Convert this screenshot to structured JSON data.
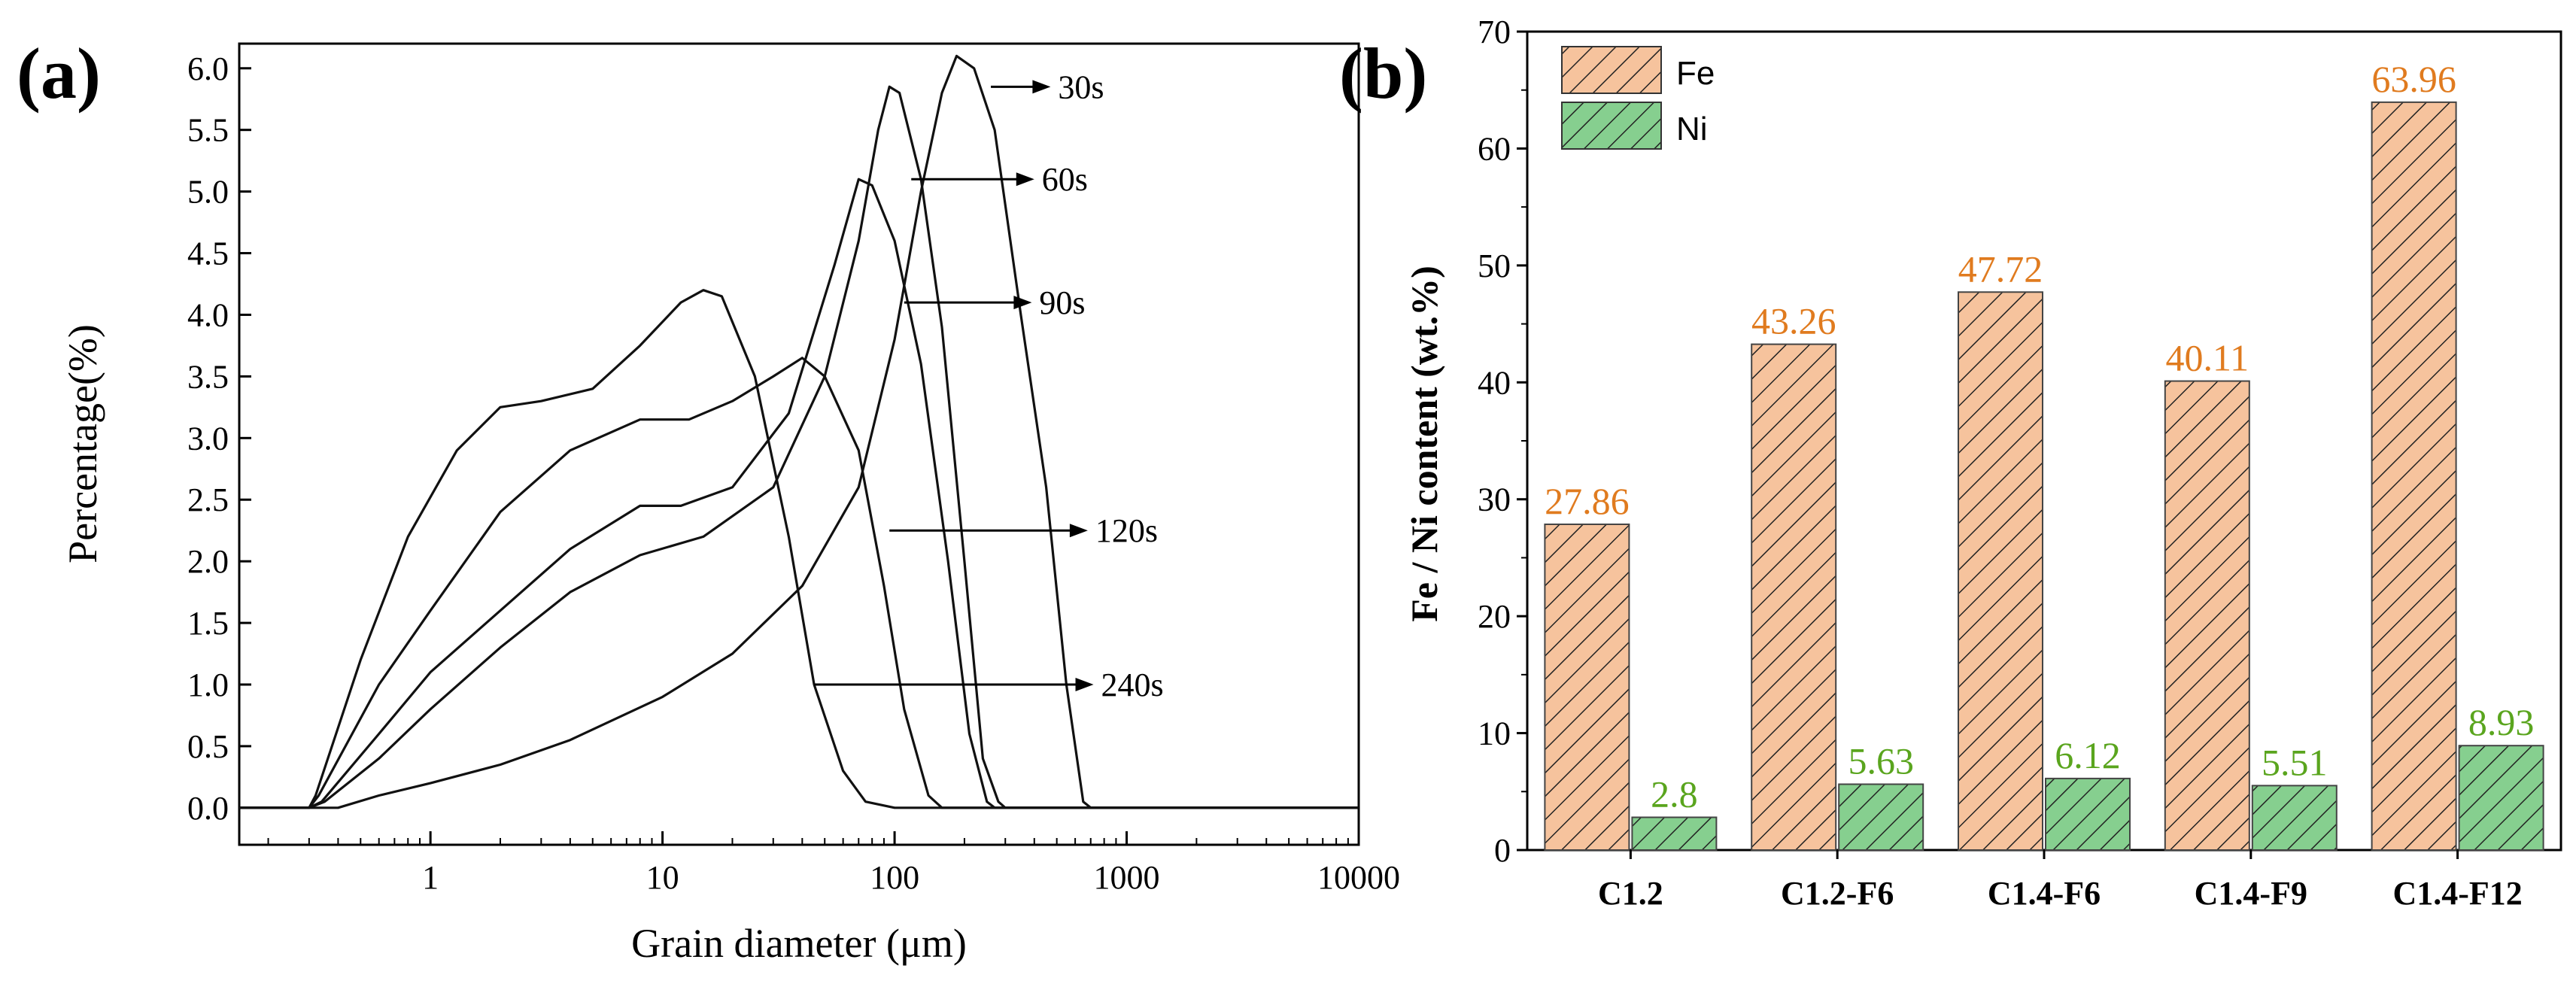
{
  "panels": {
    "a": {
      "label": "(a)",
      "xlabel": "Grain diameter (μm)",
      "ylabel": "Percentage(%)",
      "x_ticks": [
        "1",
        "10",
        "100",
        "1000",
        "10000"
      ],
      "y_ticks": [
        "0.0",
        "0.5",
        "1.0",
        "1.5",
        "2.0",
        "2.5",
        "3.0",
        "3.5",
        "4.0",
        "4.5",
        "5.0",
        "5.5",
        "6.0"
      ]
    },
    "b": {
      "label": "(b)",
      "ylabel": "Fe / Ni content (wt.%)",
      "y_ticks": [
        "0",
        "10",
        "20",
        "30",
        "40",
        "50",
        "60",
        "70"
      ],
      "legend": [
        "Fe",
        "Ni"
      ]
    }
  },
  "colors": {
    "fe_fill": "#f6c39d",
    "fe_label": "#e07b1f",
    "ni_fill": "#86cf8f",
    "ni_label": "#5aa51e"
  },
  "chart_data": [
    {
      "type": "line",
      "xlabel": "Grain diameter (μm)",
      "ylabel": "Percentage(%)",
      "x_scale": "log",
      "xlim": [
        0.15,
        10000
      ],
      "ylim": [
        -0.3,
        6.2
      ],
      "grid": false,
      "series": [
        {
          "name": "30s",
          "points": [
            [
              0.1,
              0
            ],
            [
              0.3,
              0
            ],
            [
              0.4,
              0
            ],
            [
              0.6,
              0.1
            ],
            [
              1,
              0.2
            ],
            [
              2,
              0.35
            ],
            [
              4,
              0.55
            ],
            [
              10,
              0.9
            ],
            [
              20,
              1.25
            ],
            [
              40,
              1.8
            ],
            [
              70,
              2.6
            ],
            [
              100,
              3.8
            ],
            [
              130,
              5.0
            ],
            [
              160,
              5.8
            ],
            [
              185,
              6.1
            ],
            [
              220,
              6.0
            ],
            [
              270,
              5.5
            ],
            [
              350,
              4.0
            ],
            [
              450,
              2.6
            ],
            [
              550,
              1.0
            ],
            [
              650,
              0.05
            ],
            [
              700,
              0
            ],
            [
              10000,
              0
            ]
          ]
        },
        {
          "name": "60s",
          "points": [
            [
              0.1,
              0
            ],
            [
              0.3,
              0
            ],
            [
              0.35,
              0.05
            ],
            [
              0.6,
              0.4
            ],
            [
              1,
              0.8
            ],
            [
              2,
              1.3
            ],
            [
              4,
              1.75
            ],
            [
              8,
              2.05
            ],
            [
              15,
              2.2
            ],
            [
              30,
              2.6
            ],
            [
              50,
              3.5
            ],
            [
              70,
              4.6
            ],
            [
              85,
              5.5
            ],
            [
              95,
              5.85
            ],
            [
              105,
              5.8
            ],
            [
              130,
              5.1
            ],
            [
              160,
              3.9
            ],
            [
              200,
              2.0
            ],
            [
              240,
              0.4
            ],
            [
              280,
              0.05
            ],
            [
              300,
              0
            ],
            [
              10000,
              0
            ]
          ]
        },
        {
          "name": "90s",
          "points": [
            [
              0.1,
              0
            ],
            [
              0.3,
              0
            ],
            [
              0.34,
              0.05
            ],
            [
              0.6,
              0.6
            ],
            [
              1,
              1.1
            ],
            [
              2,
              1.6
            ],
            [
              4,
              2.1
            ],
            [
              8,
              2.45
            ],
            [
              12,
              2.45
            ],
            [
              20,
              2.6
            ],
            [
              35,
              3.2
            ],
            [
              55,
              4.4
            ],
            [
              70,
              5.1
            ],
            [
              80,
              5.05
            ],
            [
              100,
              4.6
            ],
            [
              130,
              3.6
            ],
            [
              170,
              2.0
            ],
            [
              210,
              0.6
            ],
            [
              250,
              0.05
            ],
            [
              270,
              0
            ],
            [
              10000,
              0
            ]
          ]
        },
        {
          "name": "120s",
          "points": [
            [
              0.1,
              0
            ],
            [
              0.3,
              0
            ],
            [
              0.33,
              0.1
            ],
            [
              0.6,
              1.0
            ],
            [
              1,
              1.6
            ],
            [
              2,
              2.4
            ],
            [
              4,
              2.9
            ],
            [
              8,
              3.15
            ],
            [
              13,
              3.15
            ],
            [
              20,
              3.3
            ],
            [
              30,
              3.5
            ],
            [
              40,
              3.65
            ],
            [
              50,
              3.5
            ],
            [
              70,
              2.9
            ],
            [
              90,
              1.8
            ],
            [
              110,
              0.8
            ],
            [
              140,
              0.1
            ],
            [
              160,
              0
            ],
            [
              10000,
              0
            ]
          ]
        },
        {
          "name": "240s",
          "points": [
            [
              0.1,
              0
            ],
            [
              0.3,
              0
            ],
            [
              0.32,
              0.1
            ],
            [
              0.5,
              1.2
            ],
            [
              0.8,
              2.2
            ],
            [
              1.3,
              2.9
            ],
            [
              2,
              3.25
            ],
            [
              3,
              3.3
            ],
            [
              5,
              3.4
            ],
            [
              8,
              3.75
            ],
            [
              12,
              4.1
            ],
            [
              15,
              4.2
            ],
            [
              18,
              4.15
            ],
            [
              25,
              3.5
            ],
            [
              35,
              2.2
            ],
            [
              45,
              1.0
            ],
            [
              60,
              0.3
            ],
            [
              75,
              0.05
            ],
            [
              100,
              0
            ],
            [
              10000,
              0
            ]
          ]
        }
      ],
      "annotations": [
        "30s",
        "60s",
        "90s",
        "120s",
        "240s"
      ]
    },
    {
      "type": "bar",
      "ylabel": "Fe / Ni content (wt.%)",
      "ylim": [
        0,
        70
      ],
      "categories": [
        "C1.2",
        "C1.2-F6",
        "C1.4-F6",
        "C1.4-F9",
        "C1.4-F12"
      ],
      "series": [
        {
          "name": "Fe",
          "values": [
            27.86,
            43.26,
            47.72,
            40.11,
            63.96
          ],
          "labels": [
            "27.86",
            "43.26",
            "47.72",
            "40.11",
            "63.96"
          ]
        },
        {
          "name": "Ni",
          "values": [
            2.8,
            5.63,
            6.12,
            5.51,
            8.93
          ],
          "labels": [
            "2.8",
            "5.63",
            "6.12",
            "5.51",
            "8.93"
          ]
        }
      ],
      "legend_position": "top-left",
      "grid": false
    }
  ]
}
